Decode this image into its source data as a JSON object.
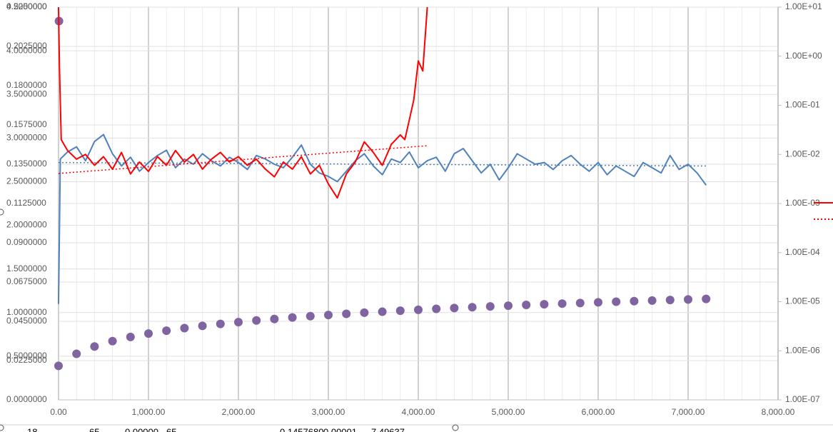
{
  "chart_data": {
    "type": "line",
    "xlim": [
      0,
      8000
    ],
    "xticks": [
      {
        "value": 0,
        "label": "0.00"
      },
      {
        "value": 1000,
        "label": "1,000.00"
      },
      {
        "value": 2000,
        "label": "2,000.00"
      },
      {
        "value": 3000,
        "label": "3,000.00"
      },
      {
        "value": 4000,
        "label": "4,000.00"
      },
      {
        "value": 5000,
        "label": "5,000.00"
      },
      {
        "value": 6000,
        "label": "6,000.00"
      },
      {
        "value": 7000,
        "label": "7,000.00"
      },
      {
        "value": 8000,
        "label": "8,000.00"
      }
    ],
    "ylim": [
      0,
      4.5
    ],
    "yticks": [
      {
        "value": 0,
        "label": "0.0000000"
      },
      {
        "value": 0.5,
        "label": "0.5000000"
      },
      {
        "value": 1,
        "label": "1.0000000"
      },
      {
        "value": 1.5,
        "label": "1.5000000"
      },
      {
        "value": 2,
        "label": "2.0000000"
      },
      {
        "value": 2.5,
        "label": "2.5000000"
      },
      {
        "value": 3,
        "label": "3.0000000"
      },
      {
        "value": 3.5,
        "label": "3.5000000"
      },
      {
        "value": 4,
        "label": "4.0000000"
      },
      {
        "value": 4.5,
        "label": "4.5000000"
      }
    ],
    "y3lim": [
      0,
      0.225
    ],
    "y3ticks": [
      {
        "value": 0.0225,
        "label": "0.0225000"
      },
      {
        "value": 0.045,
        "label": "0.0450000"
      },
      {
        "value": 0.0675,
        "label": "0.0675000"
      },
      {
        "value": 0.09,
        "label": "0.0900000"
      },
      {
        "value": 0.1125,
        "label": "0.1125000"
      },
      {
        "value": 0.135,
        "label": "0.1350000"
      },
      {
        "value": 0.1575,
        "label": "0.1575000"
      },
      {
        "value": 0.18,
        "label": "0.1800000"
      },
      {
        "value": 0.2025,
        "label": "0.2025000"
      },
      {
        "value": 0.225,
        "label": "0.2250000"
      }
    ],
    "y2lim": [
      1e-07,
      10
    ],
    "y2log": true,
    "y2ticks": [
      {
        "value": 1e-07,
        "label": "1.00E-07"
      },
      {
        "value": 1e-06,
        "label": "1.00E-06"
      },
      {
        "value": 1e-05,
        "label": "1.00E-05"
      },
      {
        "value": 0.0001,
        "label": "1.00E-04"
      },
      {
        "value": 0.001,
        "label": "1.00E-03"
      },
      {
        "value": 0.01,
        "label": "1.00E-02"
      },
      {
        "value": 0.1,
        "label": "1.00E-01"
      },
      {
        "value": 1,
        "label": "1.00E+00"
      },
      {
        "value": 10,
        "label": "1.00E+01"
      }
    ],
    "grid": true,
    "series": [
      {
        "color": "#4f81bd",
        "axis": "y3",
        "style": "line",
        "x": [
          0,
          20,
          100,
          200,
          300,
          400,
          500,
          600,
          700,
          800,
          900,
          1000,
          1100,
          1200,
          1300,
          1400,
          1500,
          1600,
          1700,
          1800,
          1900,
          2000,
          2100,
          2200,
          2300,
          2400,
          2500,
          2600,
          2700,
          2800,
          2900,
          3000,
          3100,
          3200,
          3300,
          3400,
          3500,
          3600,
          3700,
          3800,
          3900,
          4000,
          4100,
          4200,
          4300,
          4400,
          4500,
          4600,
          4700,
          4800,
          4900,
          5000,
          5100,
          5200,
          5300,
          5400,
          5500,
          5600,
          5700,
          5800,
          5900,
          6000,
          6100,
          6200,
          6300,
          6400,
          6500,
          6600,
          6700,
          6800,
          6900,
          7000,
          7100,
          7200
        ],
        "values": [
          0.055,
          0.138,
          0.142,
          0.145,
          0.137,
          0.148,
          0.152,
          0.141,
          0.134,
          0.139,
          0.131,
          0.136,
          0.14,
          0.143,
          0.133,
          0.138,
          0.135,
          0.141,
          0.137,
          0.134,
          0.139,
          0.136,
          0.132,
          0.14,
          0.138,
          0.135,
          0.133,
          0.139,
          0.146,
          0.135,
          0.13,
          0.128,
          0.125,
          0.131,
          0.137,
          0.141,
          0.134,
          0.129,
          0.138,
          0.136,
          0.142,
          0.133,
          0.137,
          0.139,
          0.131,
          0.141,
          0.144,
          0.137,
          0.13,
          0.135,
          0.126,
          0.133,
          0.141,
          0.138,
          0.135,
          0.136,
          0.132,
          0.137,
          0.14,
          0.135,
          0.131,
          0.136,
          0.129,
          0.134,
          0.131,
          0.128,
          0.136,
          0.133,
          0.13,
          0.14,
          0.132,
          0.135,
          0.13,
          0.123
        ]
      },
      {
        "color": "#4f81bd",
        "axis": "y3",
        "style": "dotted",
        "x": [
          0,
          7200
        ],
        "values": [
          0.136,
          0.134
        ]
      },
      {
        "color": "#ff0000",
        "axis": "y2",
        "style": "line",
        "x": [
          0,
          10,
          30,
          100,
          200,
          300,
          400,
          500,
          600,
          700,
          800,
          900,
          1000,
          1100,
          1200,
          1300,
          1400,
          1500,
          1600,
          1700,
          1800,
          1900,
          2000,
          2100,
          2200,
          2300,
          2400,
          2500,
          2600,
          2700,
          2800,
          2900,
          3000,
          3100,
          3200,
          3300,
          3400,
          3500,
          3600,
          3700,
          3800,
          3850,
          3900,
          3950,
          4000,
          4050,
          4100
        ],
        "values": [
          10,
          0.6,
          0.02,
          0.012,
          0.008,
          0.01,
          0.006,
          0.009,
          0.005,
          0.011,
          0.004,
          0.007,
          0.0045,
          0.009,
          0.006,
          0.012,
          0.007,
          0.01,
          0.005,
          0.008,
          0.011,
          0.007,
          0.009,
          0.006,
          0.008,
          0.005,
          0.0035,
          0.007,
          0.005,
          0.009,
          0.004,
          0.006,
          0.0025,
          0.0013,
          0.004,
          0.007,
          0.018,
          0.011,
          0.006,
          0.016,
          0.025,
          0.02,
          0.05,
          0.13,
          0.8,
          0.5,
          10
        ]
      },
      {
        "color": "#ff0000",
        "axis": "y2",
        "style": "dotted",
        "x": [
          0,
          4100
        ],
        "values": [
          0.0041,
          0.015
        ]
      },
      {
        "color": "#8064a2",
        "axis": "y",
        "style": "markers",
        "x": [
          5,
          0,
          200,
          400,
          600,
          800,
          1000,
          1200,
          1400,
          1600,
          1800,
          2000,
          2200,
          2400,
          2600,
          2800,
          3000,
          3200,
          3400,
          3600,
          3800,
          4000,
          4200,
          4400,
          4600,
          4800,
          5000,
          5200,
          5400,
          5600,
          5800,
          6000,
          6200,
          6400,
          6600,
          6800,
          7000,
          7200
        ],
        "values": [
          4.34,
          0.39,
          0.528,
          0.612,
          0.673,
          0.721,
          0.76,
          0.793,
          0.822,
          0.848,
          0.87,
          0.891,
          0.91,
          0.927,
          0.944,
          0.959,
          0.973,
          0.986,
          0.999,
          1.01,
          1.022,
          1.032,
          1.043,
          1.052,
          1.062,
          1.071,
          1.079,
          1.088,
          1.095,
          1.103,
          1.11,
          1.118,
          1.125,
          1.131,
          1.138,
          1.144,
          1.151,
          1.157
        ]
      }
    ]
  },
  "sheet_row": [
    "18",
    "65",
    "0.00000",
    "65",
    "0.1457680",
    "0.00001",
    "7.49637"
  ]
}
